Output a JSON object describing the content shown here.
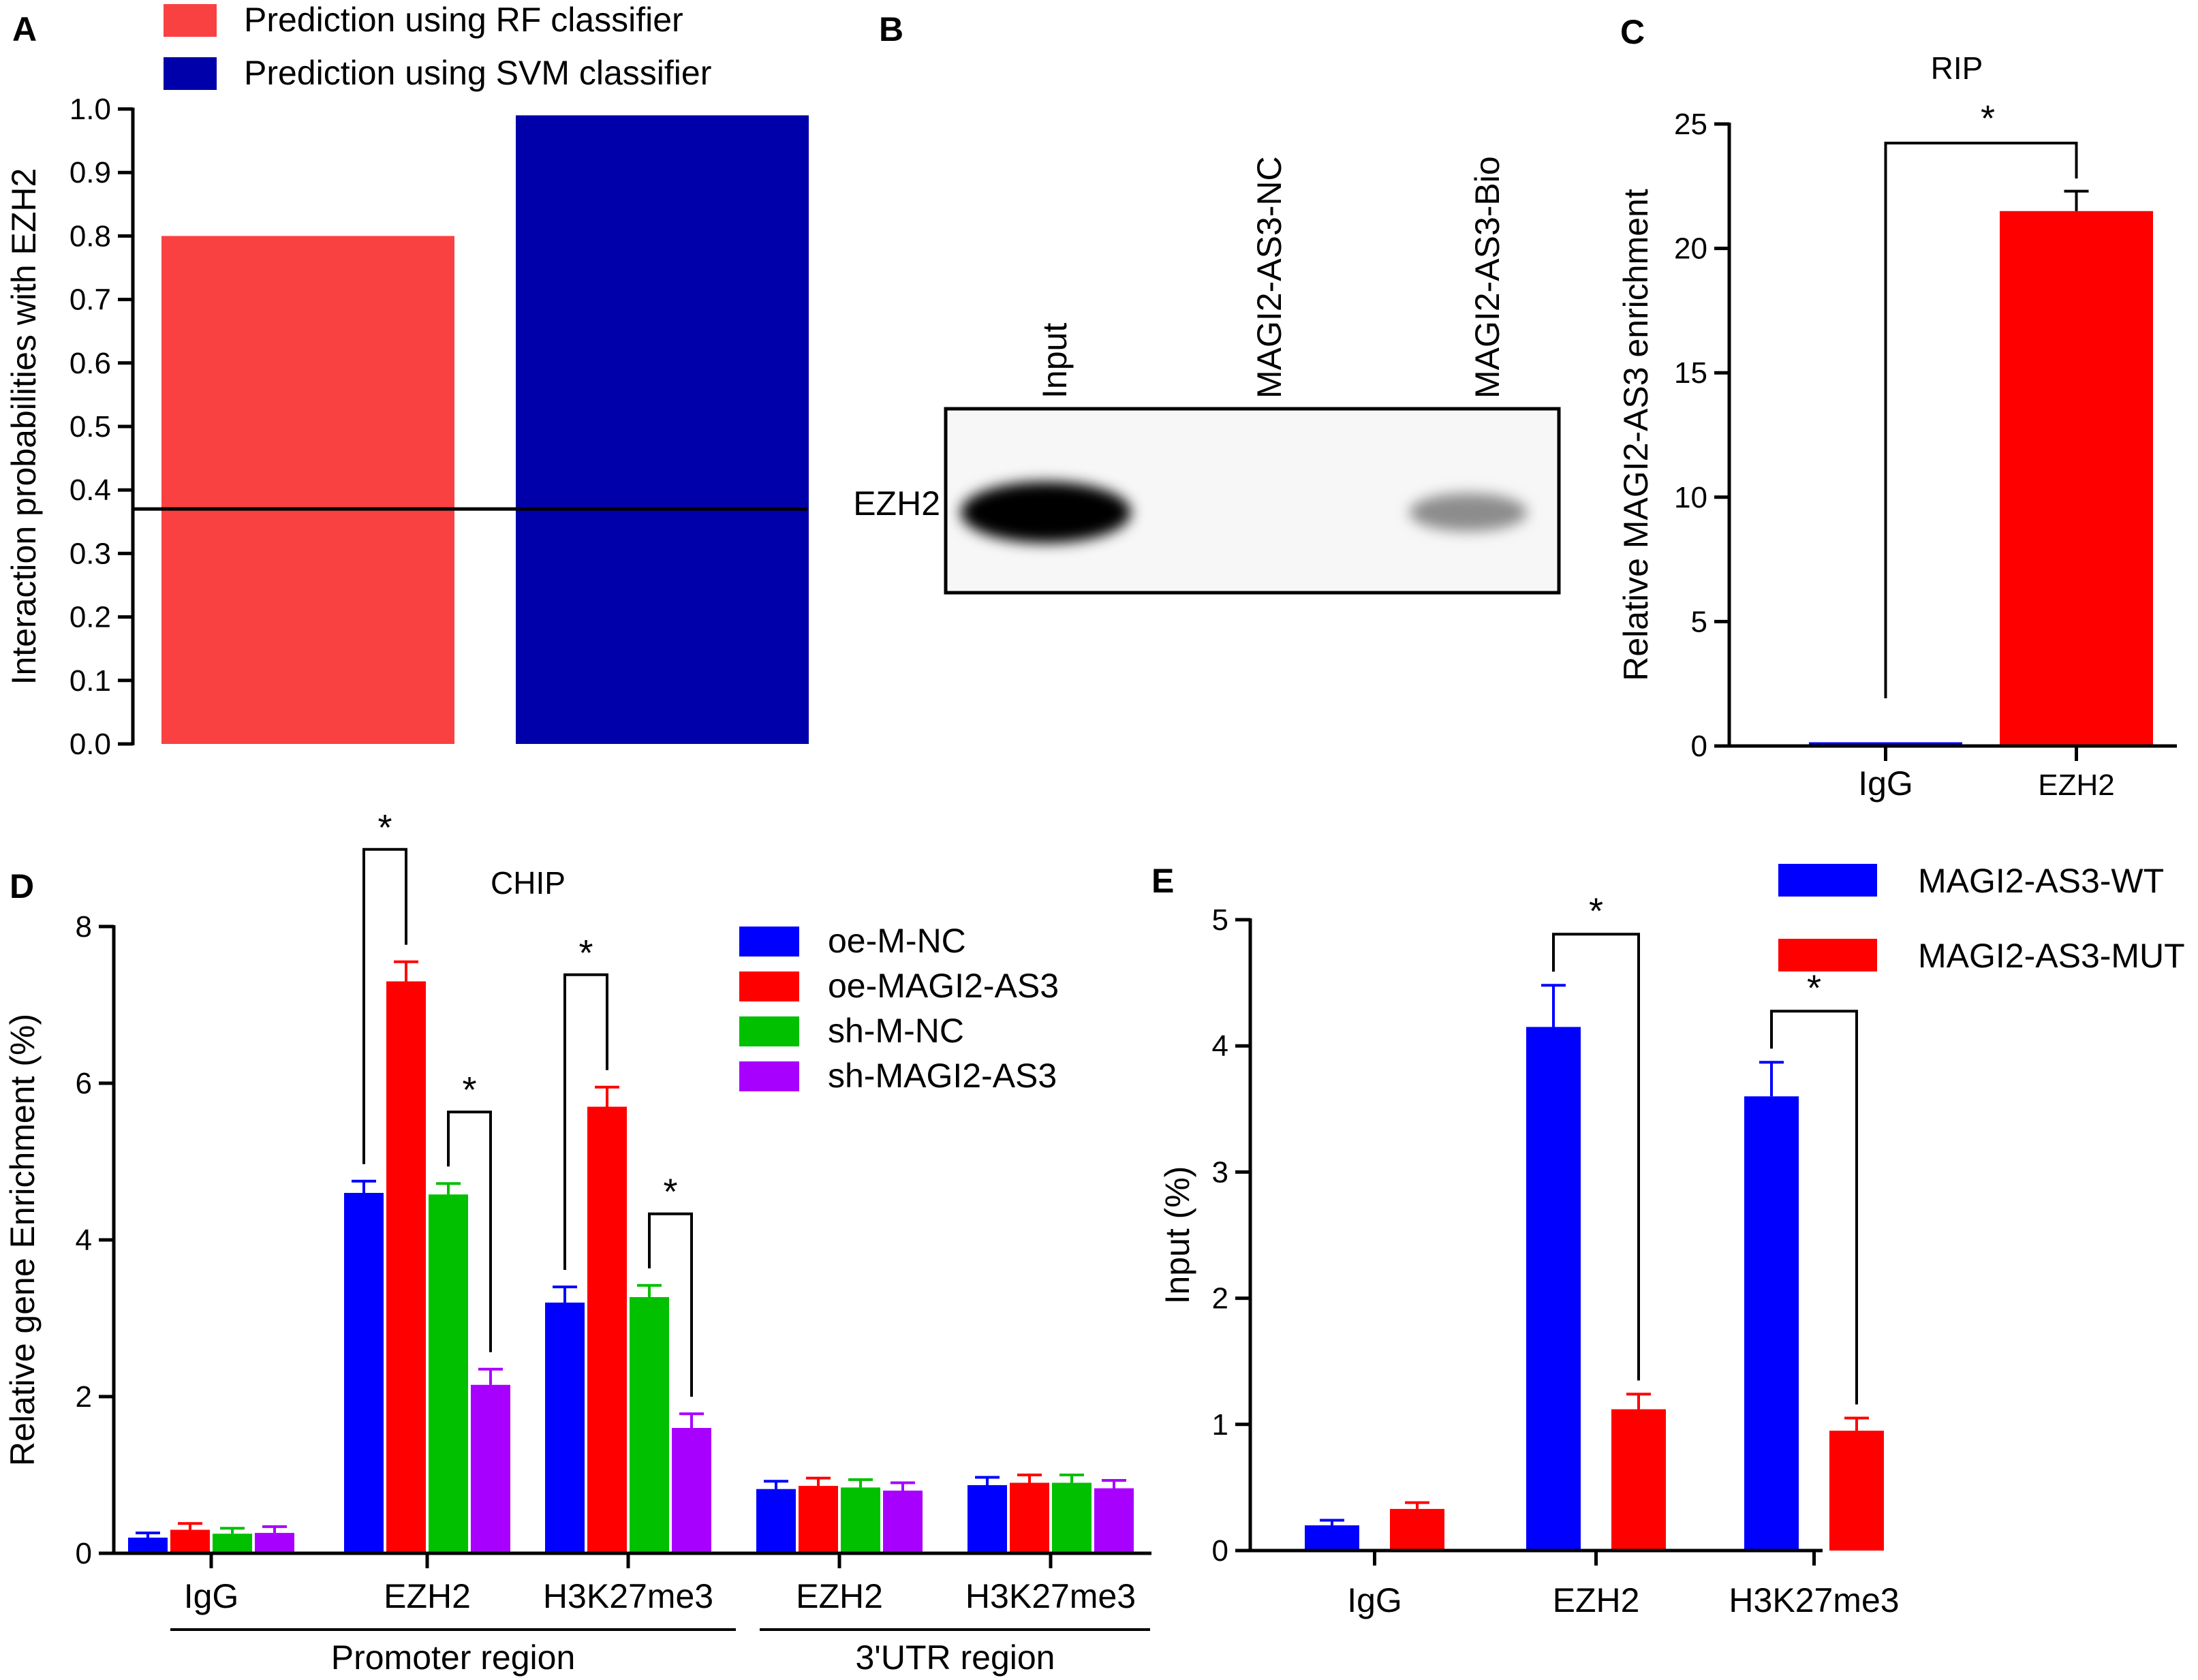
{
  "colors": {
    "panelA_rf": "#f94141",
    "panelA_svm": "#0000aa",
    "blue": "#0000ff",
    "red": "#ff0000",
    "green": "#00c000",
    "purple": "#a800ff",
    "black": "#000000"
  },
  "chart_data": [
    {
      "panel": "A",
      "type": "bar",
      "title": "",
      "xlabel": "",
      "ylabel": "Interaction probabilities with EZH2",
      "ylim": [
        0,
        1.0
      ],
      "yticks": [
        "0.0",
        "0.1",
        "0.2",
        "0.3",
        "0.4",
        "0.5",
        "0.6",
        "0.7",
        "0.8",
        "0.9",
        "1.0"
      ],
      "series": [
        {
          "name": "Prediction using RF classifier",
          "values": [
            0.8
          ]
        },
        {
          "name": "Prediction using SVM classifier",
          "values": [
            0.99
          ]
        }
      ],
      "threshold_line": 0.37,
      "legend_position": "top-left"
    },
    {
      "panel": "B",
      "type": "blot",
      "lane_labels": [
        "Input",
        "MAGI2-AS3-NC",
        "MAGI2-AS3-Bio"
      ],
      "row_label": "EZH2",
      "band_intensity": [
        1.0,
        0.0,
        0.45
      ]
    },
    {
      "panel": "C",
      "type": "bar",
      "title": "RIP",
      "xlabel": "",
      "ylabel": "Relative MAGI2-AS3 enrichment",
      "ylim": [
        0,
        25
      ],
      "yticks": [
        "0",
        "5",
        "10",
        "15",
        "20",
        "25"
      ],
      "categories": [
        "IgG",
        "EZH2"
      ],
      "values": [
        0.15,
        21.5
      ],
      "errors": [
        0.05,
        0.8
      ],
      "significance": [
        {
          "between": [
            "IgG",
            "EZH2"
          ],
          "label": "*"
        }
      ]
    },
    {
      "panel": "D",
      "type": "bar",
      "title": "CHIP",
      "xlabel": "",
      "ylabel": "Relative gene Enrichment (%)",
      "ylim": [
        0,
        8
      ],
      "yticks": [
        "0",
        "2",
        "4",
        "6",
        "8"
      ],
      "categories": [
        "IgG",
        "EZH2",
        "H3K27me3",
        "EZH2",
        "H3K27me3"
      ],
      "groups": [
        {
          "label": "Promoter region"
        },
        {
          "label": "3'UTR region"
        }
      ],
      "series": [
        {
          "name": "oe-M-NC",
          "values": [
            0.2,
            4.6,
            3.2,
            0.82,
            0.87
          ],
          "errors": [
            0.06,
            0.15,
            0.2,
            0.1,
            0.1
          ]
        },
        {
          "name": "oe-MAGI2-AS3",
          "values": [
            0.3,
            7.3,
            5.7,
            0.86,
            0.9
          ],
          "errors": [
            0.08,
            0.25,
            0.25,
            0.1,
            0.1
          ]
        },
        {
          "name": "sh-M-NC",
          "values": [
            0.25,
            4.58,
            3.27,
            0.84,
            0.9
          ],
          "errors": [
            0.07,
            0.14,
            0.15,
            0.1,
            0.1
          ]
        },
        {
          "name": "sh-MAGI2-AS3",
          "values": [
            0.26,
            2.15,
            1.6,
            0.8,
            0.83
          ],
          "errors": [
            0.08,
            0.2,
            0.18,
            0.1,
            0.1
          ]
        }
      ],
      "significance": [
        {
          "category": 1,
          "pair": [
            0,
            1
          ],
          "label": "*"
        },
        {
          "category": 1,
          "pair": [
            2,
            3
          ],
          "label": "*"
        },
        {
          "category": 2,
          "pair": [
            0,
            1
          ],
          "label": "*"
        },
        {
          "category": 2,
          "pair": [
            2,
            3
          ],
          "label": "*"
        }
      ],
      "legend_position": "top-right"
    },
    {
      "panel": "E",
      "type": "bar",
      "title": "",
      "xlabel": "",
      "ylabel": "Input (%)",
      "ylim": [
        0,
        5
      ],
      "yticks": [
        "0",
        "1",
        "2",
        "3",
        "4",
        "5"
      ],
      "categories": [
        "IgG",
        "EZH2",
        "H3K27me3"
      ],
      "series": [
        {
          "name": "MAGI2-AS3-WT",
          "values": [
            0.2,
            4.15,
            3.6
          ],
          "errors": [
            0.04,
            0.33,
            0.27
          ]
        },
        {
          "name": "MAGI2-AS3-MUT",
          "values": [
            0.33,
            1.12,
            0.95
          ],
          "errors": [
            0.05,
            0.12,
            0.1
          ]
        }
      ],
      "significance": [
        {
          "category": 1,
          "pair": [
            0,
            1
          ],
          "label": "*"
        },
        {
          "category": 2,
          "pair": [
            0,
            1
          ],
          "label": "*"
        }
      ],
      "legend_position": "top-right"
    }
  ]
}
